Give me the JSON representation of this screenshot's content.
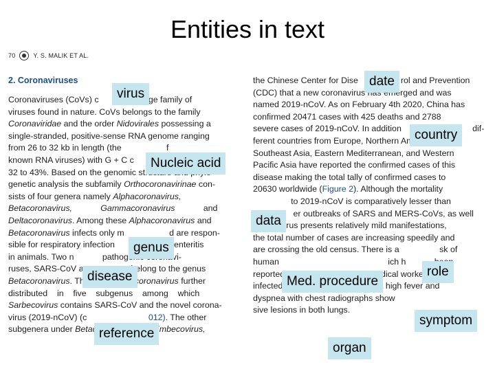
{
  "slide": {
    "title": "Entities in text"
  },
  "paper": {
    "page_number": "70",
    "authors": "Y. S. MALIK ET AL.",
    "section_title": "2. Coronaviruses",
    "left_lines": [
      [
        {
          "t": "Coronaviruses (CoVs) c"
        },
        {
          "t": "              a large family of"
        }
      ],
      [
        {
          "t": "viruses found in nature. CoVs belongs to the family"
        }
      ],
      [
        {
          "t": "Coronaviridae",
          "i": true
        },
        {
          "t": " and the order "
        },
        {
          "t": "Nidovirales",
          "i": true
        },
        {
          "t": " possessing a"
        }
      ],
      [
        {
          "t": "single-stranded, positive-sense RNA genome ranging"
        }
      ],
      [
        {
          "t": "from 26 to 32 kb in length (the"
        },
        {
          "t": "                   f"
        }
      ],
      [
        {
          "t": "known RNA viruses) with G + C c"
        }
      ],
      [
        {
          "t": "32 to 43%. Based on the genomic structure and phylo-"
        }
      ],
      [
        {
          "t": "genetic analysis the subfamily "
        },
        {
          "t": "Orthocoronavirinae",
          "i": true
        },
        {
          "t": " con-"
        }
      ],
      [
        {
          "t": "sists of four genera namely "
        },
        {
          "t": "Alphacoronavirus,",
          "i": true
        }
      ],
      [
        {
          "t": "Betacoronavirus,",
          "i": true
        },
        {
          "t": "            "
        },
        {
          "t": "Gammacoronavirus",
          "i": true
        },
        {
          "t": "            and"
        }
      ],
      [
        {
          "t": "Deltacoronavirus",
          "i": true
        },
        {
          "t": ". Among these "
        },
        {
          "t": "Alphacoronavirus",
          "i": true
        },
        {
          "t": " and"
        }
      ],
      [
        {
          "t": "Betacoronavirus",
          "i": true
        },
        {
          "t": " infects only m"
        },
        {
          "t": "                   d are respon-"
        }
      ],
      [
        {
          "t": "sible for respiratory infection"
        },
        {
          "t": "                  and enteritis"
        }
      ],
      [
        {
          "t": "in animals. Two n"
        },
        {
          "t": "            pathogenic coronavi-"
        }
      ],
      [
        {
          "t": "ruses, SARS-CoV a"
        },
        {
          "t": "                    belong to the genus"
        }
      ],
      [
        {
          "t": "Betacoronavirus",
          "i": true
        },
        {
          "t": ". The genus "
        },
        {
          "t": "Betacoronavirus",
          "i": true
        },
        {
          "t": " further"
        }
      ],
      [
        {
          "t": "distributed    in    five    subgenus    among    which"
        }
      ],
      [
        {
          "t": "Sarbecovirus",
          "i": true
        },
        {
          "t": " contains SARS-CoV and the novel corona-"
        }
      ],
      [
        {
          "t": "virus (2019-nCoV) (c"
        },
        {
          "t": "                          "
        },
        {
          "t": "012)",
          "l": true
        },
        {
          "t": ". The other"
        }
      ],
      [
        {
          "t": "subgenera under "
        },
        {
          "t": "Betacoronavirus",
          "i": true
        },
        {
          "t": " are "
        },
        {
          "t": "Embecovirus,",
          "i": true
        }
      ]
    ],
    "right_lines": [
      [
        {
          "t": "the Chinese Center for Dise"
        },
        {
          "t": "                  rol and Prevention"
        }
      ],
      [
        {
          "t": "(CDC) that a new coronavirus has emerged and was"
        }
      ],
      [
        {
          "t": "named 2019-nCoV. As on February 4th 2020, China has"
        }
      ],
      [
        {
          "t": "confirmed 20471 cases with 425 deaths and 2788"
        }
      ],
      [
        {
          "t": "severe cases of 2019-nCoV. In addition"
        },
        {
          "t": "                              dif-"
        }
      ],
      [
        {
          "t": "ferent countries from Europe, Northern America,"
        }
      ],
      [
        {
          "t": "Southeast Asia, Eastern Mediterranean, and Western"
        }
      ],
      [
        {
          "t": "Pacific Asia have reported the confirmed cases of this"
        }
      ],
      [
        {
          "t": "disease making the total tally of confirmed cases to"
        }
      ],
      [
        {
          "t": "20630 worldwide ("
        },
        {
          "t": "Figure 2",
          "l": true
        },
        {
          "t": "). Although the mortality"
        }
      ],
      [
        {
          "t": "                to 2019-nCoV is comparatively lesser than"
        }
      ],
      [
        {
          "t": "                 er outbreaks of SARS and MERS-CoVs, as well"
        }
      ],
      [
        {
          "t": "as this virus presents relatively mild manifestations,"
        }
      ],
      [
        {
          "t": "the total number of cases are increasing speedily and"
        }
      ],
      [
        {
          "t": "are crossing the old census. There is a"
        },
        {
          "t": "                 sk of"
        }
      ],
      [
        {
          "t": "human"
        },
        {
          "t": "                                              ich h"
        },
        {
          "t": "            been"
        }
      ],
      [
        {
          "t": "reported in family clusters and medical workers. The"
        }
      ],
      [
        {
          "t": "infected patients with nCoV exhibit high fever and"
        }
      ],
      [
        {
          "t": "dyspnea with chest radiographs show"
        }
      ],
      [
        {
          "t": "sive lesions in both lungs."
        }
      ]
    ]
  },
  "entity_labels": {
    "virus": "virus",
    "nucleic_acid": "Nucleic acid",
    "genus": "genus",
    "disease": "disease",
    "reference": "reference",
    "date": "date",
    "country": "country",
    "data": "data",
    "role": "role",
    "med_procedure": "Med. procedure",
    "symptom": "symptom",
    "organ": "organ"
  },
  "colors": {
    "label_bg": "#c5e6ef",
    "section_title": "#1a4f8a",
    "link": "#1a4f8a"
  }
}
